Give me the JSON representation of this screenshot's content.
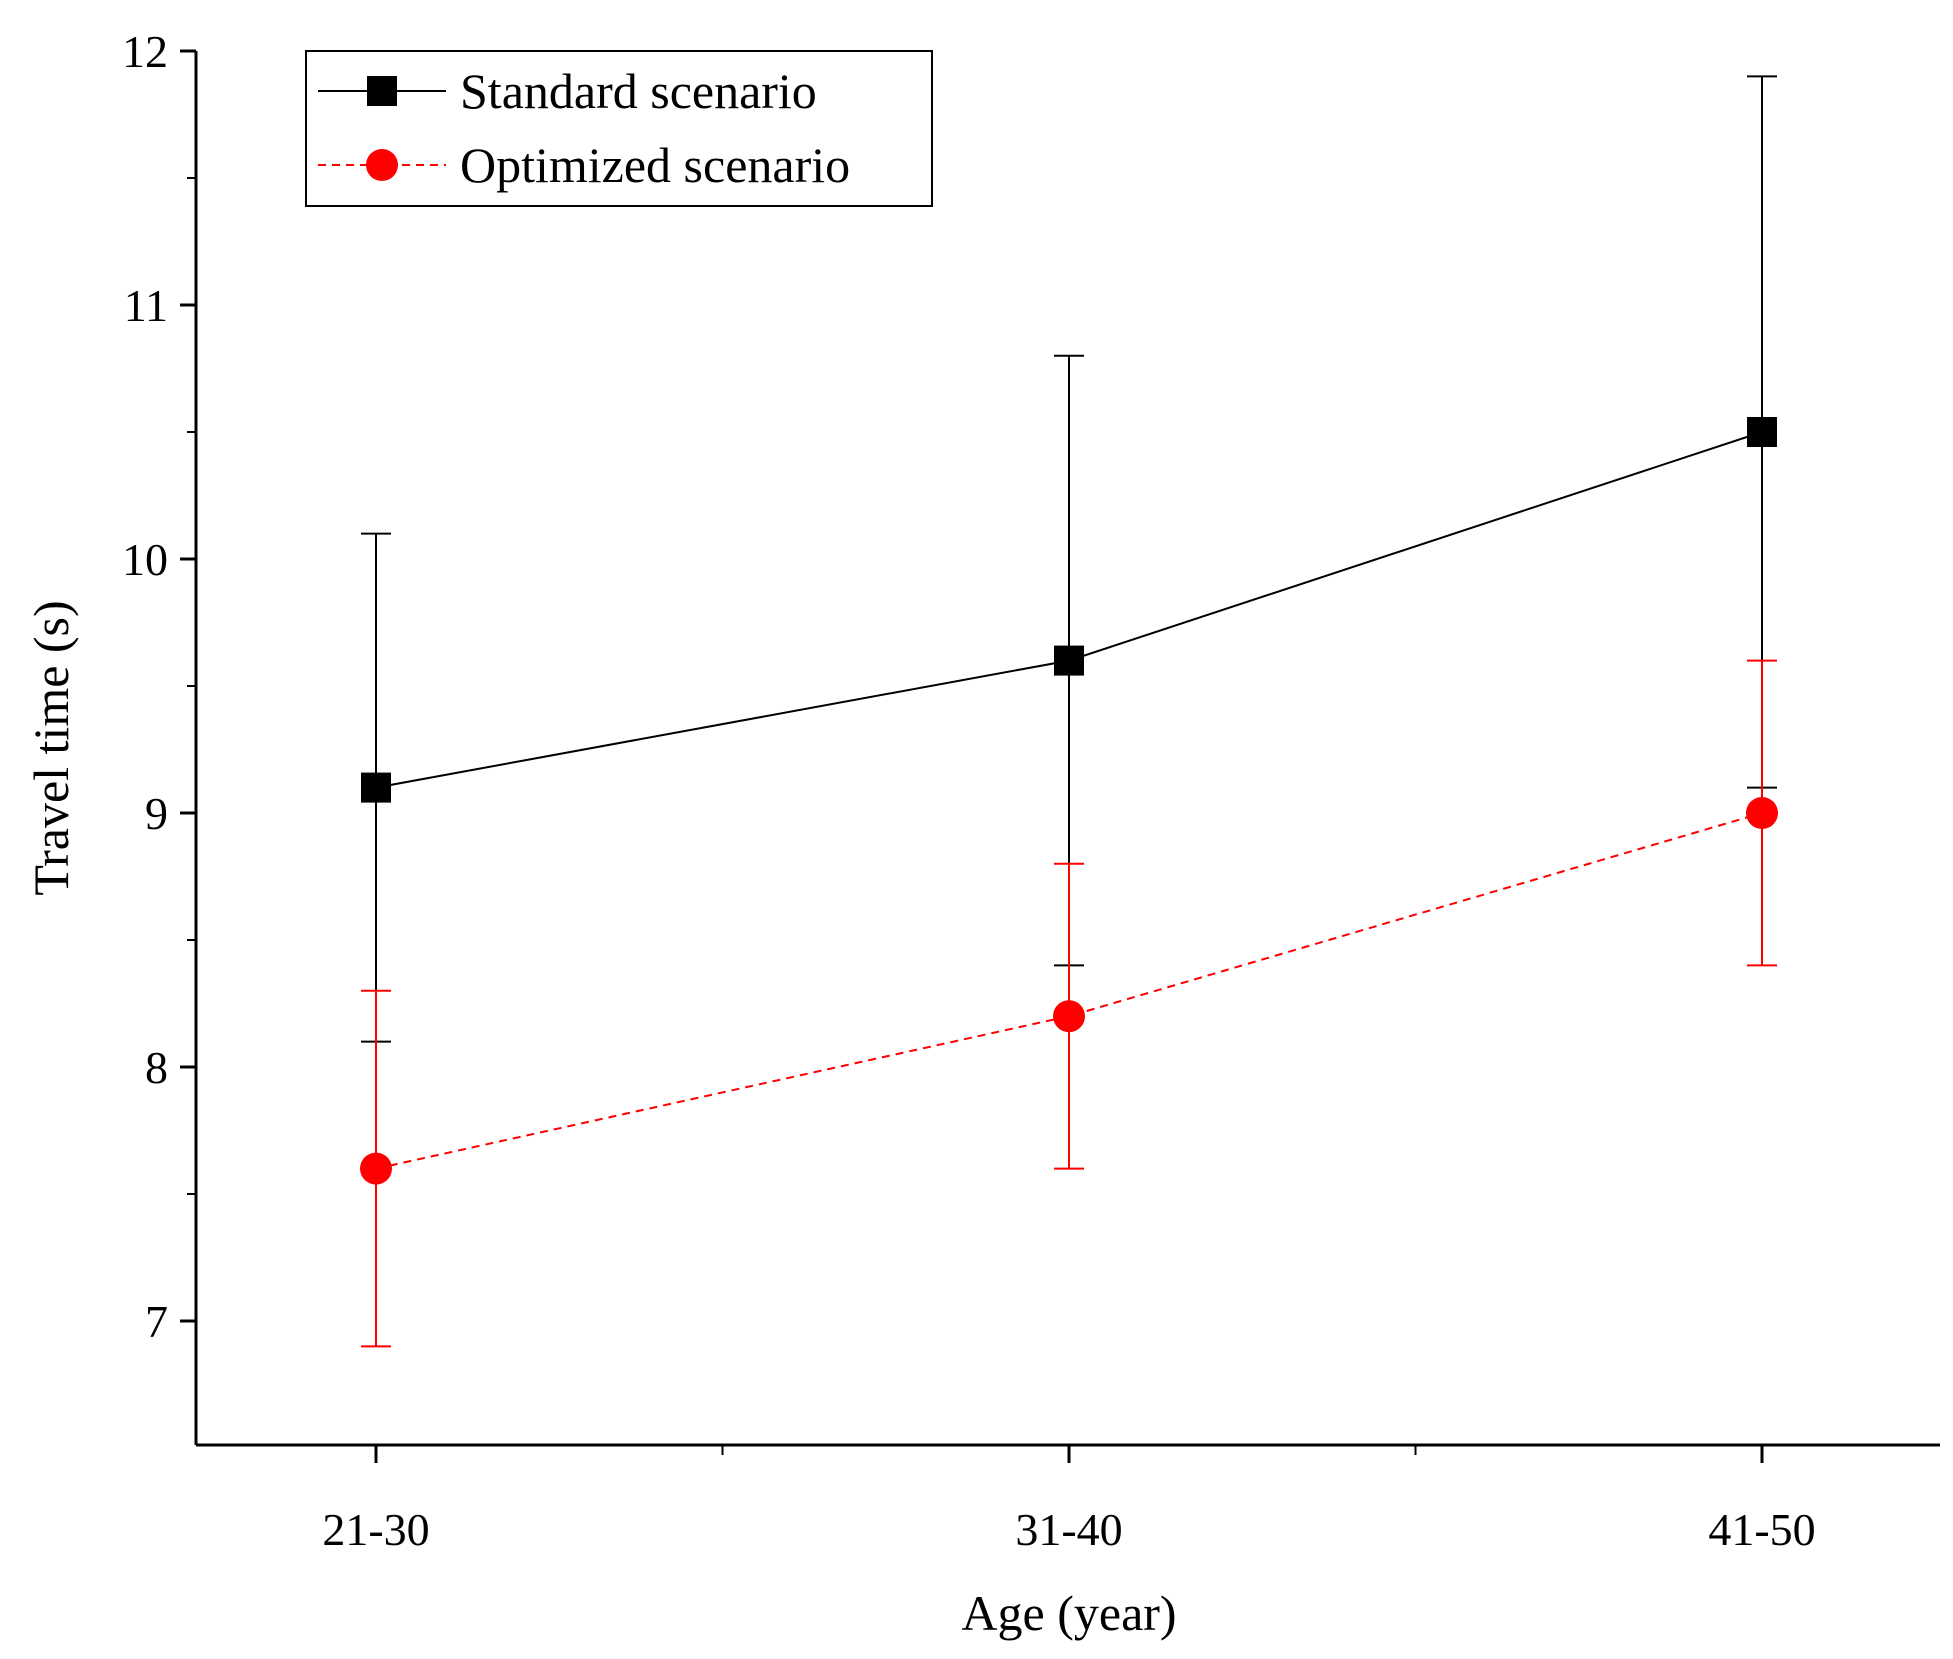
{
  "chart_data": {
    "type": "line",
    "xlabel": "Age (year)",
    "ylabel": "Travel time (s)",
    "categories": [
      "21-30",
      "31-40",
      "41-50"
    ],
    "ylim": [
      6.5,
      12
    ],
    "yticks": [
      "7",
      "8",
      "9",
      "10",
      "11",
      "12"
    ],
    "grid": false,
    "legend_position": "top-left",
    "series": [
      {
        "name": "Standard scenario",
        "color": "#000000",
        "marker": "square",
        "line_style": "solid",
        "values": [
          9.1,
          9.6,
          10.5
        ],
        "error_low": [
          8.1,
          8.4,
          9.1
        ],
        "error_high": [
          10.1,
          10.8,
          11.9
        ]
      },
      {
        "name": "Optimized scenario",
        "color": "#ff0000",
        "marker": "circle",
        "line_style": "dashed",
        "values": [
          7.6,
          8.2,
          9.0
        ],
        "error_low": [
          6.9,
          7.6,
          8.4
        ],
        "error_high": [
          8.3,
          8.8,
          9.6
        ]
      }
    ]
  }
}
